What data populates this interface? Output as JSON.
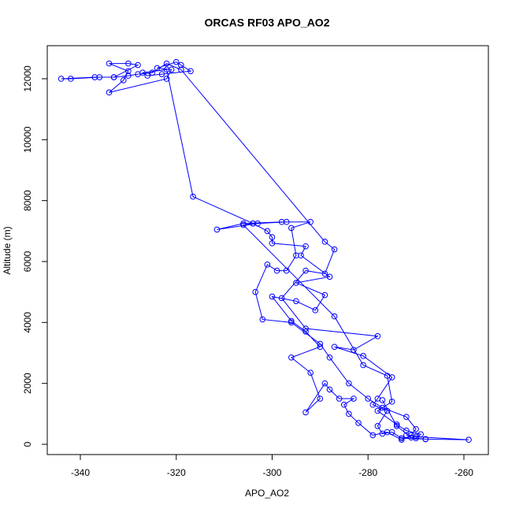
{
  "chart_data": {
    "type": "scatter",
    "title": "ORCAS RF03 APO_AO2",
    "xlabel": "APO_AO2",
    "ylabel": "Altitude (m)",
    "color": "#0000ff",
    "x": [
      -272,
      -270,
      -259,
      -268,
      -273,
      -275,
      -277,
      -278,
      -276,
      -279,
      -278,
      -275,
      -281,
      -287,
      -283,
      -278,
      -293,
      -298,
      -293,
      -289,
      -287,
      -289,
      -319,
      -322,
      -325,
      -328,
      -330,
      -333,
      -336,
      -342,
      -344,
      -337,
      -333,
      -328,
      -330,
      -334,
      -330,
      -331,
      -334,
      -322,
      -321,
      -324,
      -320,
      -319,
      -317,
      -323,
      -326,
      -327,
      -322,
      -316.5,
      -304,
      -297,
      -303,
      -311.5,
      -306,
      -298,
      -292,
      -296,
      -295,
      -297,
      -299,
      -301,
      -303.5,
      -302,
      -296,
      -290,
      -288,
      -284,
      -280,
      -277,
      -272,
      -270,
      -271,
      -273,
      -276,
      -279,
      -282,
      -284,
      -285,
      -283,
      -286,
      -288,
      -289,
      -293,
      -290,
      -292,
      -296,
      -290,
      -293,
      -296,
      -300,
      -295,
      -291,
      -289,
      -295,
      -288,
      -294,
      -293,
      -300,
      -300,
      -301,
      -304,
      -306,
      -287,
      -281,
      -276,
      -275,
      -278,
      -274,
      -272,
      -269,
      -270,
      -268,
      -271,
      -274,
      -277
    ],
    "values": [
      300,
      250,
      150,
      170,
      200,
      400,
      350,
      600,
      1100,
      1300,
      1500,
      2200,
      2900,
      3200,
      3100,
      3550,
      3800,
      4800,
      5700,
      5600,
      6400,
      6650,
      12300,
      12500,
      12200,
      12150,
      12100,
      12050,
      12050,
      12000,
      12000,
      12050,
      12050,
      12450,
      12500,
      12500,
      12250,
      11950,
      11550,
      12000,
      12300,
      12350,
      12550,
      12450,
      12250,
      12150,
      12100,
      12200,
      12300,
      8130,
      7250,
      7300,
      7250,
      7050,
      7250,
      7300,
      7300,
      7100,
      6200,
      5700,
      5700,
      5900,
      5000,
      4100,
      4000,
      3300,
      2850,
      2000,
      1500,
      1200,
      900,
      500,
      300,
      150,
      400,
      300,
      700,
      1000,
      1300,
      1500,
      1500,
      1800,
      2000,
      1050,
      1500,
      2350,
      2850,
      3200,
      3700,
      4050,
      4850,
      4700,
      4400,
      4900,
      5300,
      5500,
      6200,
      6500,
      6600,
      6800,
      7000,
      7250,
      7200,
      4200,
      2600,
      2250,
      1400,
      1100,
      650,
      450,
      330,
      200,
      170,
      220,
      600,
      1450
    ],
    "xlim": [
      -346.9,
      -254.9
    ],
    "ylim": [
      -336,
      13085
    ],
    "xticks": [
      -340,
      -320,
      -300,
      -280,
      -260
    ],
    "yticks": [
      0,
      2000,
      4000,
      6000,
      8000,
      10000,
      12000
    ]
  }
}
